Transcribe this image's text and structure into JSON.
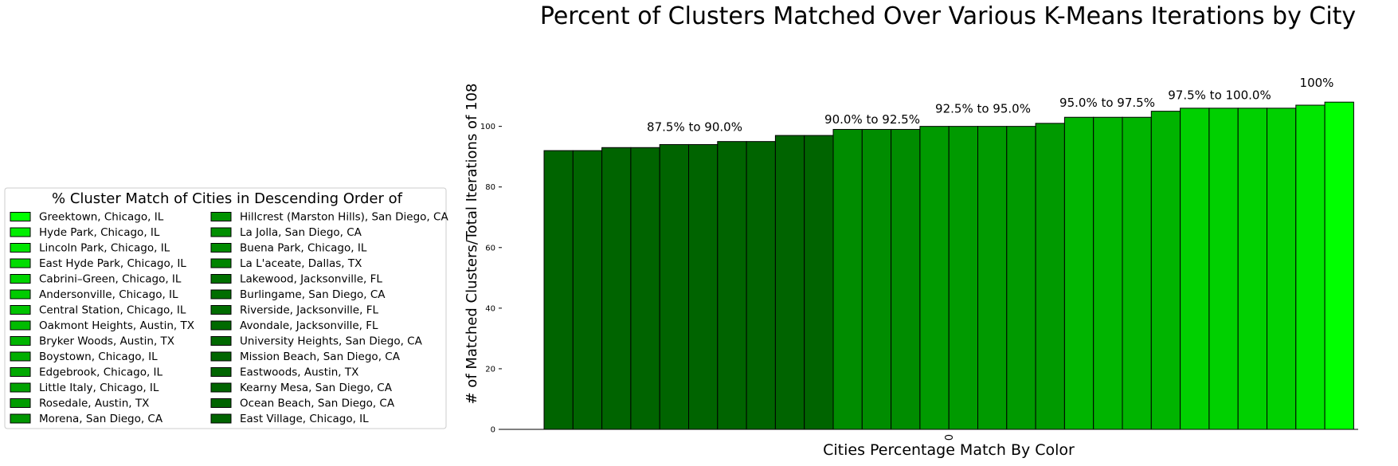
{
  "chart_data": {
    "type": "bar",
    "title": "Percent of Clusters Matched Over Various K-Means Iterations by City",
    "xlabel": "Cities Percentage Match By Color",
    "ylabel": "# of Matched Clusters/Total Iterations of 108",
    "x_tick_labels": [
      "0"
    ],
    "y_ticks": [
      0,
      20,
      40,
      60,
      80,
      100
    ],
    "ylim": [
      0,
      112
    ],
    "grid": false,
    "values": [
      92,
      92,
      93,
      93,
      94,
      94,
      95,
      95,
      97,
      97,
      99,
      99,
      99,
      100,
      100,
      100,
      100,
      101,
      103,
      103,
      103,
      105,
      106,
      106,
      106,
      106,
      107,
      108
    ],
    "bar_colors": [
      "#006400",
      "#006400",
      "#006400",
      "#006400",
      "#006400",
      "#006400",
      "#006400",
      "#006400",
      "#006400",
      "#006400",
      "#008c00",
      "#008c00",
      "#008c00",
      "#009a00",
      "#009a00",
      "#009a00",
      "#009a00",
      "#009a00",
      "#00b400",
      "#00b400",
      "#00b400",
      "#00b400",
      "#00d000",
      "#00d000",
      "#00d000",
      "#00d000",
      "#00e600",
      "#00ff00"
    ],
    "group_annotations": [
      {
        "text": "87.5% to 90.0%",
        "y": 98.5
      },
      {
        "text": "90.0% to 92.5%",
        "y": 101
      },
      {
        "text": "92.5% to 95.0%",
        "y": 104.5
      },
      {
        "text": "95.0% to 97.5%",
        "y": 106.5
      },
      {
        "text": "97.5% to 100.0%",
        "y": 109
      },
      {
        "text": "100%",
        "y": 113
      }
    ],
    "legend": {
      "position": "left",
      "title": "% Cluster Match of Cities in Descending Order of",
      "entries": [
        {
          "label": "Greektown, Chicago, IL",
          "color": "#00ff00"
        },
        {
          "label": "Hyde Park, Chicago, IL",
          "color": "#00ee00"
        },
        {
          "label": "Lincoln Park, Chicago, IL",
          "color": "#00e600"
        },
        {
          "label": "East Hyde Park, Chicago, IL",
          "color": "#00dc00"
        },
        {
          "label": "Cabrini–Green, Chicago, IL",
          "color": "#00d400"
        },
        {
          "label": "Andersonville, Chicago, IL",
          "color": "#00cc00"
        },
        {
          "label": "Central Station, Chicago, IL",
          "color": "#00c400"
        },
        {
          "label": "Oakmont Heights, Austin, TX",
          "color": "#00bc00"
        },
        {
          "label": "Bryker Woods, Austin, TX",
          "color": "#00b400"
        },
        {
          "label": "Boystown, Chicago, IL",
          "color": "#00ae00"
        },
        {
          "label": "Edgebrook, Chicago, IL",
          "color": "#00a800"
        },
        {
          "label": "Little Italy, Chicago, IL",
          "color": "#00a200"
        },
        {
          "label": "Rosedale, Austin, TX",
          "color": "#009c00"
        },
        {
          "label": "Morena, San Diego, CA",
          "color": "#009600"
        },
        {
          "label": "Hillcrest (Marston Hills), San Diego, CA",
          "color": "#009200"
        },
        {
          "label": "La Jolla, San Diego, CA",
          "color": "#008e00"
        },
        {
          "label": "Buena Park, Chicago, IL",
          "color": "#008a00"
        },
        {
          "label": "La L'aceate, Dallas, TX",
          "color": "#008400"
        },
        {
          "label": "Lakewood, Jacksonville, FL",
          "color": "#007000"
        },
        {
          "label": "Burlingame, San Diego, CA",
          "color": "#006e00"
        },
        {
          "label": "Riverside, Jacksonville, FL",
          "color": "#006c00"
        },
        {
          "label": "Avondale, Jacksonville, FL",
          "color": "#006a00"
        },
        {
          "label": "University Heights, San Diego, CA",
          "color": "#006800"
        },
        {
          "label": "Mission Beach, San Diego, CA",
          "color": "#006600"
        },
        {
          "label": "Eastwoods, Austin, TX",
          "color": "#006500"
        },
        {
          "label": "Kearny Mesa, San Diego, CA",
          "color": "#006400"
        },
        {
          "label": "Ocean Beach, San Diego, CA",
          "color": "#006400"
        },
        {
          "label": "East Village, Chicago, IL",
          "color": "#006400"
        }
      ]
    }
  }
}
